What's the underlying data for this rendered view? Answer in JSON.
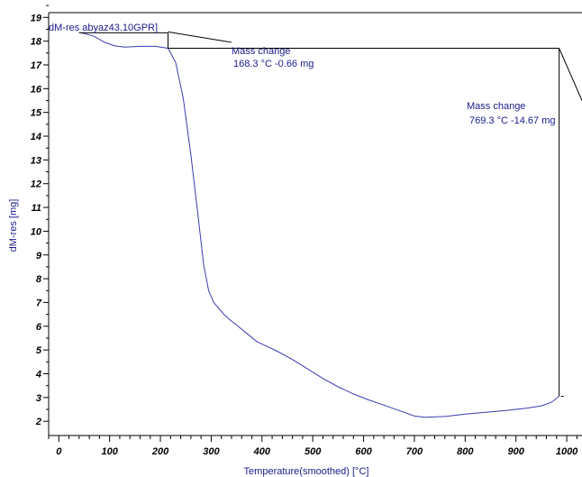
{
  "chart_data": {
    "type": "line",
    "xlabel": "Temperature(smoothed) [°C]",
    "ylabel": "dM-res [mg]",
    "xlim": [
      -20,
      1030
    ],
    "ylim": [
      1.4,
      19.2
    ],
    "xticks": [
      0,
      100,
      200,
      300,
      400,
      500,
      600,
      700,
      800,
      900,
      1000
    ],
    "yticks": [
      2,
      3,
      4,
      5,
      6,
      7,
      8,
      9,
      10,
      11,
      12,
      13,
      14,
      15,
      16,
      17,
      18,
      19
    ],
    "series": [
      {
        "name": "dM-res abyaz43.10GPR]",
        "color": "#3b3bb0",
        "x": [
          45,
          70,
          90,
          110,
          130,
          160,
          190,
          215,
          230,
          245,
          260,
          275,
          285,
          295,
          305,
          315,
          325,
          335,
          350,
          370,
          390,
          410,
          430,
          460,
          490,
          520,
          550,
          580,
          610,
          640,
          670,
          700,
          720,
          760,
          800,
          840,
          880,
          920,
          950,
          970,
          985
        ],
        "values": [
          18.35,
          18.2,
          17.95,
          17.8,
          17.75,
          17.78,
          17.78,
          17.7,
          17.1,
          15.6,
          13.2,
          10.5,
          8.6,
          7.5,
          7.0,
          6.75,
          6.5,
          6.3,
          6.05,
          5.7,
          5.35,
          5.15,
          4.95,
          4.6,
          4.2,
          3.8,
          3.45,
          3.15,
          2.9,
          2.68,
          2.45,
          2.22,
          2.17,
          2.2,
          2.3,
          2.38,
          2.45,
          2.55,
          2.65,
          2.8,
          3.05
        ]
      }
    ],
    "annotations": [
      {
        "title": "Mass change",
        "value": "168.3 °C  -0.66 mg"
      },
      {
        "title": "Mass change",
        "value": "769.3 °C  -14.67 mg"
      }
    ]
  }
}
